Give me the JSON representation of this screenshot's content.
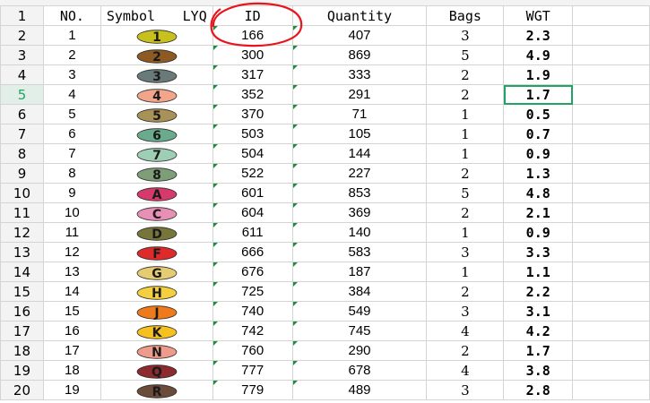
{
  "headers": {
    "no": "NO.",
    "symbol": "Symbol",
    "lyq": "LYQ",
    "id": "ID",
    "quantity": "Quantity",
    "bags": "Bags",
    "wgt": "WGT"
  },
  "header_row_number": "1",
  "active_row": 4,
  "colors": {
    "weight_text": "#e8151c",
    "selection": "#21a366",
    "annotation": "#e8151c"
  },
  "rows": [
    {
      "row": "2",
      "no": "1",
      "symbol": "1",
      "color": "#c8c01e",
      "id": "166",
      "qty": "407",
      "bags": "3",
      "wgt": "2.3"
    },
    {
      "row": "3",
      "no": "2",
      "symbol": "2",
      "color": "#8c5a22",
      "id": "300",
      "qty": "869",
      "bags": "5",
      "wgt": "4.9"
    },
    {
      "row": "4",
      "no": "3",
      "symbol": "3",
      "color": "#6a7a7a",
      "id": "317",
      "qty": "333",
      "bags": "2",
      "wgt": "1.9"
    },
    {
      "row": "5",
      "no": "4",
      "symbol": "4",
      "color": "#f2a58a",
      "id": "352",
      "qty": "291",
      "bags": "2",
      "wgt": "1.7"
    },
    {
      "row": "6",
      "no": "5",
      "symbol": "5",
      "color": "#a99257",
      "id": "370",
      "qty": "71",
      "bags": "1",
      "wgt": "0.5"
    },
    {
      "row": "7",
      "no": "6",
      "symbol": "6",
      "color": "#6aab8e",
      "id": "503",
      "qty": "105",
      "bags": "1",
      "wgt": "0.7"
    },
    {
      "row": "8",
      "no": "7",
      "symbol": "7",
      "color": "#9ecfb6",
      "id": "504",
      "qty": "144",
      "bags": "1",
      "wgt": "0.9"
    },
    {
      "row": "9",
      "no": "8",
      "symbol": "8",
      "color": "#7e9e78",
      "id": "522",
      "qty": "227",
      "bags": "2",
      "wgt": "1.3"
    },
    {
      "row": "10",
      "no": "9",
      "symbol": "A",
      "color": "#d6396b",
      "id": "601",
      "qty": "853",
      "bags": "5",
      "wgt": "4.8"
    },
    {
      "row": "11",
      "no": "10",
      "symbol": "C",
      "color": "#e78fb4",
      "id": "604",
      "qty": "369",
      "bags": "2",
      "wgt": "2.1"
    },
    {
      "row": "12",
      "no": "11",
      "symbol": "D",
      "color": "#77763a",
      "id": "611",
      "qty": "140",
      "bags": "1",
      "wgt": "0.9"
    },
    {
      "row": "13",
      "no": "12",
      "symbol": "F",
      "color": "#de2a2a",
      "id": "666",
      "qty": "583",
      "bags": "3",
      "wgt": "3.3"
    },
    {
      "row": "14",
      "no": "13",
      "symbol": "G",
      "color": "#e5cc73",
      "id": "676",
      "qty": "187",
      "bags": "1",
      "wgt": "1.1"
    },
    {
      "row": "15",
      "no": "14",
      "symbol": "H",
      "color": "#f4cf3f",
      "id": "725",
      "qty": "384",
      "bags": "2",
      "wgt": "2.2"
    },
    {
      "row": "16",
      "no": "15",
      "symbol": "J",
      "color": "#ef7a1c",
      "id": "740",
      "qty": "549",
      "bags": "3",
      "wgt": "3.1"
    },
    {
      "row": "17",
      "no": "16",
      "symbol": "K",
      "color": "#f6c01e",
      "id": "742",
      "qty": "745",
      "bags": "4",
      "wgt": "4.2"
    },
    {
      "row": "18",
      "no": "17",
      "symbol": "N",
      "color": "#ee9a8c",
      "id": "760",
      "qty": "290",
      "bags": "2",
      "wgt": "1.7"
    },
    {
      "row": "19",
      "no": "18",
      "symbol": "Q",
      "color": "#8c2a2e",
      "id": "777",
      "qty": "678",
      "bags": "4",
      "wgt": "3.8"
    },
    {
      "row": "20",
      "no": "19",
      "symbol": "R",
      "color": "#6b4c3b",
      "id": "779",
      "qty": "489",
      "bags": "3",
      "wgt": "2.8"
    }
  ]
}
